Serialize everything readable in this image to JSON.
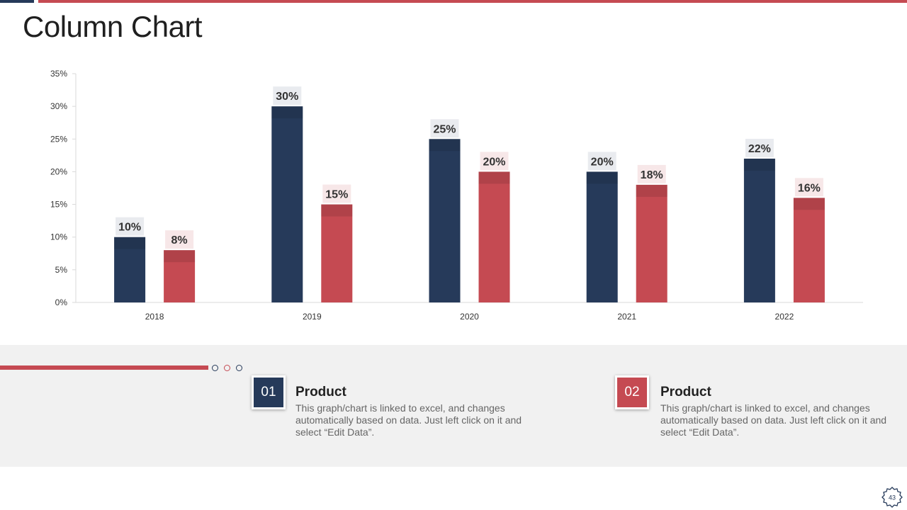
{
  "title": "Column Chart",
  "colors": {
    "navy": "#263A5A",
    "red": "#C54A52",
    "panel": "#F1F1F1"
  },
  "chart_data": {
    "type": "bar",
    "categories": [
      "2018",
      "2019",
      "2020",
      "2021",
      "2022"
    ],
    "series": [
      {
        "name": "Product 01",
        "color": "#263A5A",
        "values": [
          10,
          30,
          25,
          20,
          22
        ]
      },
      {
        "name": "Product 02",
        "color": "#C54A52",
        "values": [
          8,
          15,
          20,
          18,
          16
        ]
      }
    ],
    "ylim": [
      0,
      35
    ],
    "yticks": [
      0,
      5,
      10,
      15,
      20,
      25,
      30,
      35
    ],
    "tick_suffix": "%",
    "data_labels": true,
    "grid": false,
    "xlabel": "",
    "ylabel": ""
  },
  "products": [
    {
      "number": "01",
      "title": "Product",
      "description": "This graph/chart is linked to excel, and changes automatically based on data. Just left click on it and select “Edit Data”."
    },
    {
      "number": "02",
      "title": "Product",
      "description": "This graph/chart is linked to excel, and changes automatically based on data. Just left click on it and select “Edit Data”."
    }
  ],
  "page_number": "43"
}
